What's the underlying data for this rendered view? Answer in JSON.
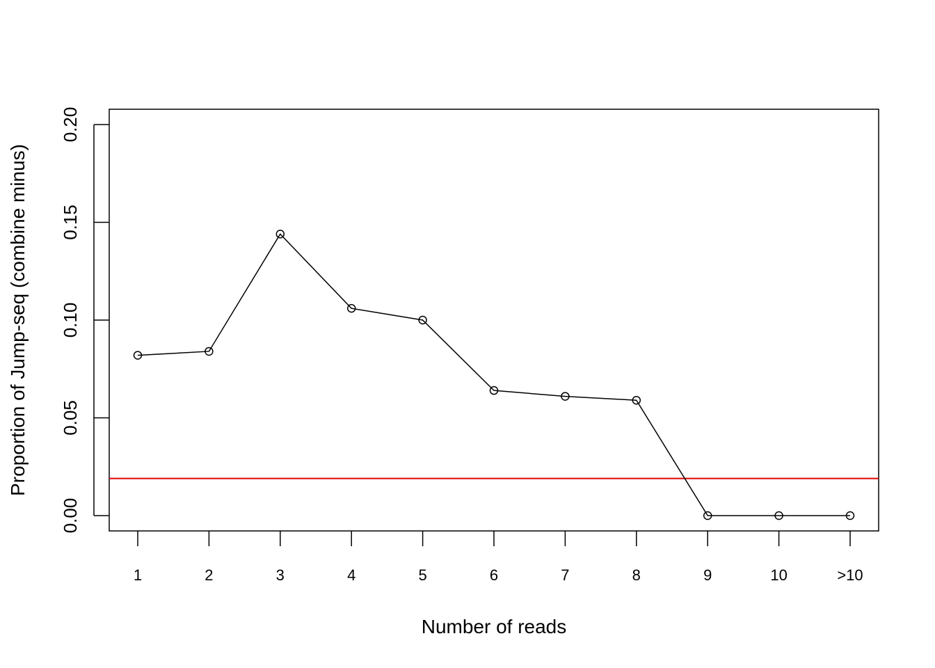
{
  "chart_data": {
    "type": "line",
    "title": "",
    "xlabel": "Number of reads",
    "ylabel": "Proportion of Jump-seq (combine minus)",
    "categories": [
      "1",
      "2",
      "3",
      "4",
      "5",
      "6",
      "7",
      "8",
      "9",
      "10",
      ">10"
    ],
    "series": [
      {
        "values": [
          0.082,
          0.084,
          0.144,
          0.106,
          0.1,
          0.064,
          0.061,
          0.059,
          0.0,
          0.0,
          0.0
        ],
        "color": "#000000",
        "marker": "open-circle"
      }
    ],
    "reference_line": {
      "y": 0.019,
      "color": "#e00000"
    },
    "ylim": [
      0,
      0.2
    ],
    "yticks": [
      "0.00",
      "0.05",
      "0.10",
      "0.15",
      "0.20"
    ],
    "grid": false,
    "legend": "none"
  }
}
